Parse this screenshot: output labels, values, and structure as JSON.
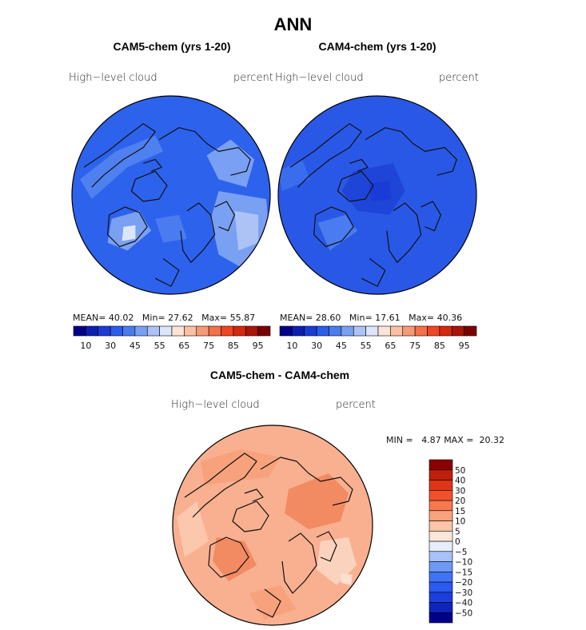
{
  "figure": {
    "title": "ANN",
    "colors": {
      "coast": "#111111",
      "map_outline": "#000000"
    }
  },
  "chart_data": [
    {
      "type": "map",
      "title": "CAM5-chem (yrs 1-20)",
      "variable_label": "High−level cloud",
      "units_label": "percent",
      "stats": {
        "mean_label": "MEAN=",
        "mean": "40.02",
        "min_label": "Min=",
        "min": "27.62",
        "max_label": "Max=",
        "max": "55.87"
      },
      "base_color": "#2d62ec",
      "colorbar": {
        "orientation": "horizontal",
        "colors": [
          "#00008b",
          "#0b1fb0",
          "#1a3bd6",
          "#2c5cea",
          "#4a7cf0",
          "#7aa0f3",
          "#adc3f6",
          "#dce6fa",
          "#fde4d6",
          "#fbc0a3",
          "#f89a77",
          "#f5714b",
          "#f04623",
          "#d4280f",
          "#aa1409",
          "#7a0000"
        ],
        "tick_labels": [
          "10",
          "30",
          "45",
          "55",
          "65",
          "75",
          "85",
          "95"
        ]
      }
    },
    {
      "type": "map",
      "title": "CAM4-chem (yrs 1-20)",
      "variable_label": "High−level cloud",
      "units_label": "percent",
      "stats": {
        "mean_label": "MEAN=",
        "mean": "28.60",
        "min_label": "Min=",
        "min": "17.61",
        "max_label": "Max=",
        "max": "40.36"
      },
      "base_color": "#2a58e6",
      "colorbar": {
        "orientation": "horizontal",
        "colors": [
          "#00008b",
          "#0b1fb0",
          "#1a3bd6",
          "#2c5cea",
          "#4a7cf0",
          "#7aa0f3",
          "#adc3f6",
          "#dce6fa",
          "#fde4d6",
          "#fbc0a3",
          "#f89a77",
          "#f5714b",
          "#f04623",
          "#d4280f",
          "#aa1409",
          "#7a0000"
        ],
        "tick_labels": [
          "10",
          "30",
          "45",
          "55",
          "65",
          "75",
          "85",
          "95"
        ]
      }
    },
    {
      "type": "map",
      "title": "CAM5-chem - CAM4-chem",
      "variable_label": "High−level cloud",
      "units_label": "percent",
      "stats": {
        "min_label": "MIN =",
        "min": "4.87",
        "max_label": "MAX =",
        "max": "20.32"
      },
      "base_color": "#f9b090",
      "colorbar": {
        "orientation": "vertical",
        "colors": [
          "#00008b",
          "#0f24b8",
          "#1b3fdc",
          "#2a5af0",
          "#3f74f4",
          "#6e98f6",
          "#a6c2f8",
          "#e6eefc",
          "#fde6d8",
          "#fcc4a8",
          "#f9a27e",
          "#f6784f",
          "#f2502a",
          "#e03518",
          "#bf200b",
          "#8b0000"
        ],
        "tick_labels": [
          "50",
          "40",
          "30",
          "20",
          "15",
          "10",
          "5",
          "0",
          "−5",
          "−10",
          "−15",
          "−20",
          "−30",
          "−40",
          "−50"
        ]
      }
    }
  ]
}
